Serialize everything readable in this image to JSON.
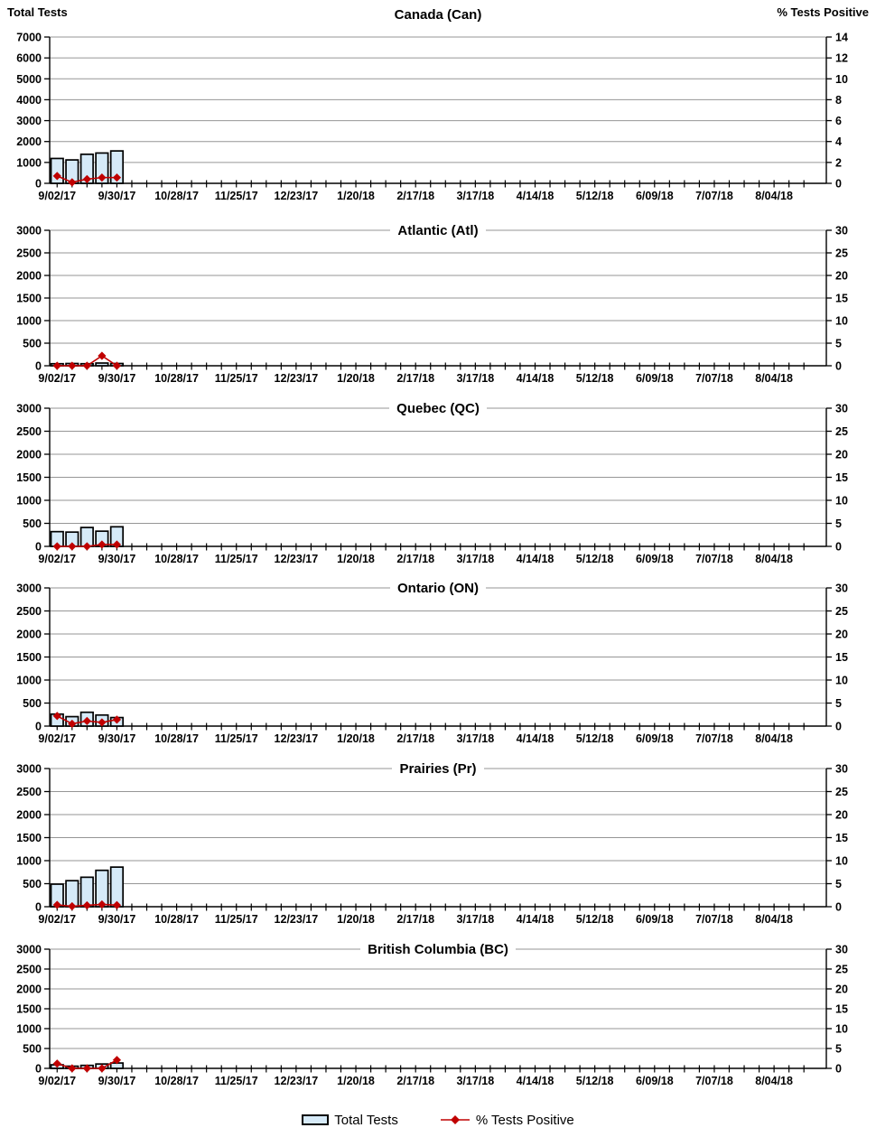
{
  "axis_titles": {
    "left": "Total Tests",
    "right": "% Tests Positive"
  },
  "legend": {
    "total_tests": "Total Tests",
    "pct_positive": "% Tests Positive"
  },
  "colors": {
    "bar_fill": "#D6EAF8",
    "bar_stroke": "#000000",
    "line": "#C00000",
    "gridline": "#969696",
    "axis": "#000000"
  },
  "x_axis": {
    "major_labels": [
      "9/02/17",
      "9/30/17",
      "10/28/17",
      "11/25/17",
      "12/23/17",
      "1/20/18",
      "2/17/18",
      "3/17/18",
      "4/14/18",
      "5/12/18",
      "6/09/18",
      "7/07/18",
      "8/04/18"
    ],
    "weeks_per_label": 4,
    "total_weeks": 52,
    "minor_ticks": "weekly"
  },
  "chart_data": [
    {
      "type": "bar",
      "subtype": "combo-bar-line",
      "title": "Canada (Can)",
      "categories": [
        "9/02/17",
        "9/09/17",
        "9/16/17",
        "9/23/17",
        "9/30/17"
      ],
      "series": [
        {
          "name": "Total Tests",
          "type": "bar",
          "axis": "left",
          "values": [
            1190,
            1120,
            1390,
            1450,
            1550
          ]
        },
        {
          "name": "% Tests Positive",
          "type": "line",
          "axis": "right",
          "values": [
            0.7,
            0.1,
            0.4,
            0.55,
            0.55
          ]
        }
      ],
      "left_axis": {
        "label": "Total Tests",
        "min": 0,
        "max": 7000,
        "step": 1000
      },
      "right_axis": {
        "label": "% Tests Positive",
        "min": 0,
        "max": 14,
        "step": 2
      },
      "grid": true,
      "legend_position": "bottom"
    },
    {
      "type": "bar",
      "subtype": "combo-bar-line",
      "title": "Atlantic (Atl)",
      "categories": [
        "9/02/17",
        "9/09/17",
        "9/16/17",
        "9/23/17",
        "9/30/17"
      ],
      "series": [
        {
          "name": "Total Tests",
          "type": "bar",
          "axis": "left",
          "values": [
            45,
            50,
            45,
            60,
            50
          ]
        },
        {
          "name": "% Tests Positive",
          "type": "line",
          "axis": "right",
          "values": [
            0,
            0,
            0,
            2.2,
            0
          ]
        }
      ],
      "left_axis": {
        "label": "Total Tests",
        "min": 0,
        "max": 3000,
        "step": 500
      },
      "right_axis": {
        "label": "% Tests Positive",
        "min": 0,
        "max": 30,
        "step": 5
      },
      "grid": true,
      "legend_position": "bottom"
    },
    {
      "type": "bar",
      "subtype": "combo-bar-line",
      "title": "Quebec (QC)",
      "categories": [
        "9/02/17",
        "9/09/17",
        "9/16/17",
        "9/23/17",
        "9/30/17"
      ],
      "series": [
        {
          "name": "Total Tests",
          "type": "bar",
          "axis": "left",
          "values": [
            320,
            310,
            410,
            330,
            425
          ]
        },
        {
          "name": "% Tests Positive",
          "type": "line",
          "axis": "right",
          "values": [
            0,
            0,
            0,
            0.4,
            0.4
          ]
        }
      ],
      "left_axis": {
        "label": "Total Tests",
        "min": 0,
        "max": 3000,
        "step": 500
      },
      "right_axis": {
        "label": "% Tests Positive",
        "min": 0,
        "max": 30,
        "step": 5
      },
      "grid": true,
      "legend_position": "bottom"
    },
    {
      "type": "bar",
      "subtype": "combo-bar-line",
      "title": "Ontario (ON)",
      "categories": [
        "9/02/17",
        "9/09/17",
        "9/16/17",
        "9/23/17",
        "9/30/17"
      ],
      "series": [
        {
          "name": "Total Tests",
          "type": "bar",
          "axis": "left",
          "values": [
            260,
            205,
            300,
            240,
            185
          ]
        },
        {
          "name": "% Tests Positive",
          "type": "line",
          "axis": "right",
          "values": [
            2.2,
            0.5,
            1.1,
            0.8,
            1.4
          ]
        }
      ],
      "left_axis": {
        "label": "Total Tests",
        "min": 0,
        "max": 3000,
        "step": 500
      },
      "right_axis": {
        "label": "% Tests Positive",
        "min": 0,
        "max": 30,
        "step": 5
      },
      "grid": true,
      "legend_position": "bottom"
    },
    {
      "type": "bar",
      "subtype": "combo-bar-line",
      "title": "Prairies (Pr)",
      "categories": [
        "9/02/17",
        "9/09/17",
        "9/16/17",
        "9/23/17",
        "9/30/17"
      ],
      "series": [
        {
          "name": "Total Tests",
          "type": "bar",
          "axis": "left",
          "values": [
            490,
            565,
            640,
            790,
            860
          ]
        },
        {
          "name": "% Tests Positive",
          "type": "line",
          "axis": "right",
          "values": [
            0.4,
            0.1,
            0.3,
            0.5,
            0.35
          ]
        }
      ],
      "left_axis": {
        "label": "Total Tests",
        "min": 0,
        "max": 3000,
        "step": 500
      },
      "right_axis": {
        "label": "% Tests Positive",
        "min": 0,
        "max": 30,
        "step": 5
      },
      "grid": true,
      "legend_position": "bottom"
    },
    {
      "type": "bar",
      "subtype": "combo-bar-line",
      "title": "British Columbia (BC)",
      "categories": [
        "9/02/17",
        "9/09/17",
        "9/16/17",
        "9/23/17",
        "9/30/17"
      ],
      "series": [
        {
          "name": "Total Tests",
          "type": "bar",
          "axis": "left",
          "values": [
            90,
            55,
            75,
            110,
            135
          ]
        },
        {
          "name": "% Tests Positive",
          "type": "line",
          "axis": "right",
          "values": [
            1.2,
            0,
            0,
            0,
            2.1
          ]
        }
      ],
      "left_axis": {
        "label": "Total Tests",
        "min": 0,
        "max": 3000,
        "step": 500
      },
      "right_axis": {
        "label": "% Tests Positive",
        "min": 0,
        "max": 30,
        "step": 5
      },
      "grid": true,
      "legend_position": "bottom"
    }
  ]
}
